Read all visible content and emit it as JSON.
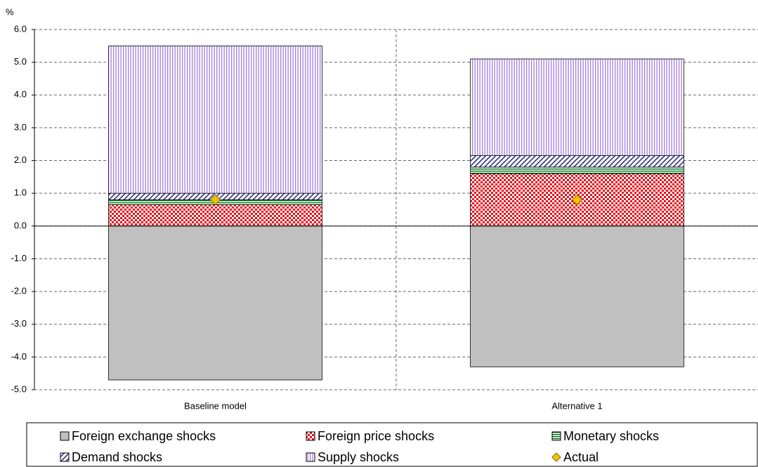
{
  "chart_data": {
    "type": "bar",
    "stacked": true,
    "y_label": "%",
    "categories": [
      "Baseline model",
      "Alternative 1"
    ],
    "series": [
      {
        "name": "Foreign exchange shocks",
        "color": "#c0c0c0",
        "pattern": "solid",
        "values": [
          -4.7,
          -4.3
        ]
      },
      {
        "name": "Foreign price shocks",
        "color": "#e8111b",
        "pattern": "checker",
        "values": [
          0.65,
          1.6
        ]
      },
      {
        "name": "Monetary shocks",
        "color": "#0a7a1e",
        "pattern": "hlines",
        "values": [
          0.15,
          0.2
        ]
      },
      {
        "name": "Demand shocks",
        "color": "#2a2f7a",
        "pattern": "diagonal",
        "values": [
          0.2,
          0.35
        ]
      },
      {
        "name": "Supply shocks",
        "color": "#a27ee0",
        "pattern": "vlines",
        "values": [
          4.5,
          2.95
        ]
      },
      {
        "name": "Actual",
        "color": "#f2c200",
        "marker": "diamond",
        "values": [
          0.8,
          0.8
        ]
      }
    ],
    "ylim": [
      -5,
      6
    ],
    "yticks": [
      {
        "value": -5,
        "label": "-5.0"
      },
      {
        "value": -4,
        "label": "-4.0"
      },
      {
        "value": -3,
        "label": "-3.0"
      },
      {
        "value": -2,
        "label": "-2.0"
      },
      {
        "value": -1,
        "label": "-1.0"
      },
      {
        "value": 0,
        "label": "0.0"
      },
      {
        "value": 1,
        "label": "1.0"
      },
      {
        "value": 2,
        "label": "2.0"
      },
      {
        "value": 3,
        "label": "3.0"
      },
      {
        "value": 4,
        "label": "4.0"
      },
      {
        "value": 5,
        "label": "5.0"
      },
      {
        "value": 6,
        "label": "6.0"
      }
    ],
    "grid": true
  }
}
